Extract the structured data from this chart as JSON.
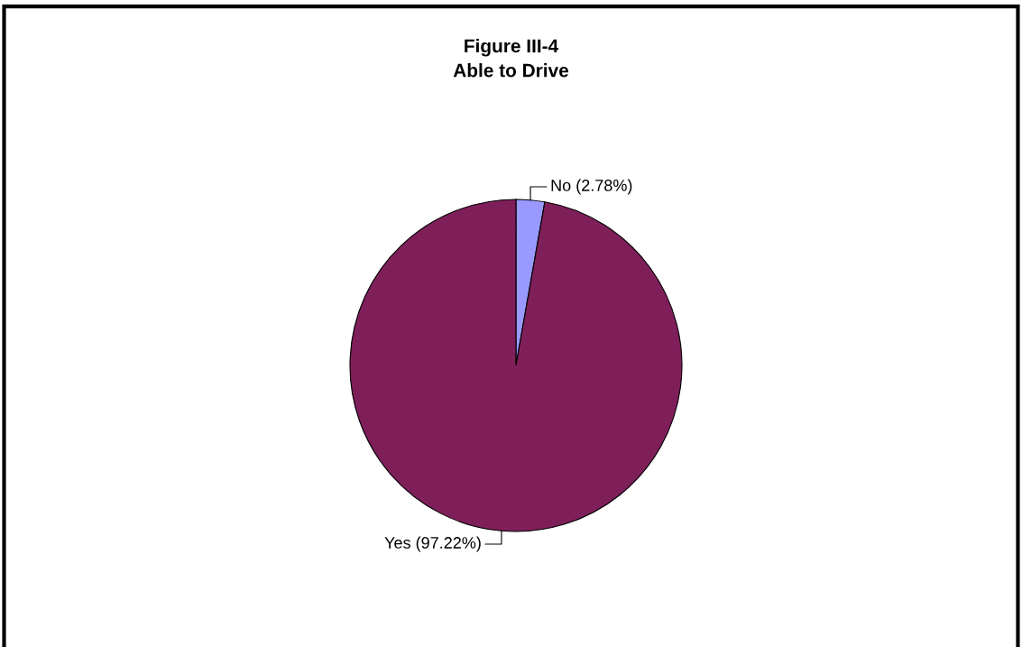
{
  "chart_data": {
    "type": "pie",
    "title": "Figure III-4\nAble to Drive",
    "categories": [
      "No (2.78%)",
      "Yes (97.22%)"
    ],
    "values": [
      2.78,
      97.22
    ],
    "colors": [
      "#9999ff",
      "#7f1f5a"
    ]
  }
}
